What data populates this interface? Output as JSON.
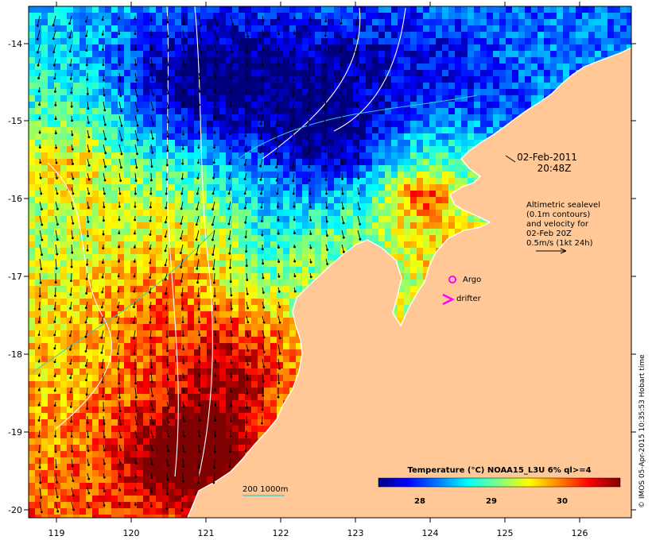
{
  "map": {
    "date": "02-Feb-2011",
    "time": "20:48Z",
    "lon_ticks": [
      "119",
      "120",
      "121",
      "122",
      "123",
      "124",
      "125",
      "126"
    ],
    "lat_ticks": [
      "-14",
      "-15",
      "-16",
      "-17",
      "-18",
      "-19",
      "-20"
    ],
    "altimetry_lines": [
      "Altimetric sealevel",
      "(0.1m contours)",
      "and velocity for",
      "02-Feb 20Z",
      "0.5m/s (1kt 24h)"
    ],
    "legend_argo": "Argo",
    "legend_drifter": "drifter",
    "bathy_label": "200  1000m",
    "colorbar": {
      "title": "Temperature (°C) NOAA15_L3U 6% ql>=4",
      "ticks": [
        "28",
        "29",
        "30"
      ],
      "colors": [
        "#00007f",
        "#0000ff",
        "#007fff",
        "#00ffff",
        "#7fff7f",
        "#ffff00",
        "#ff7f00",
        "#ff0000",
        "#7f0000"
      ]
    },
    "credit": "© IMOS 05-Apr-2015 10:35:53 Hobart time",
    "land_color": "#ffc896",
    "argo_color": "#ff00ff"
  }
}
